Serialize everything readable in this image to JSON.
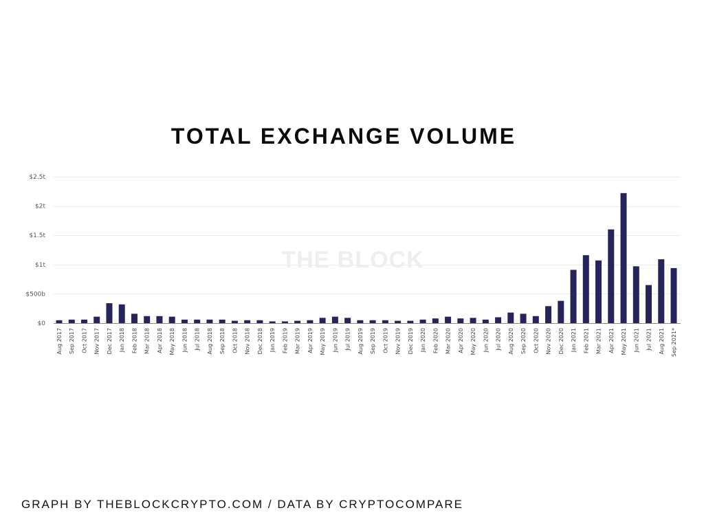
{
  "chart_data": {
    "type": "bar",
    "title": "TOTAL EXCHANGE VOLUME",
    "watermark": "THE BLOCK",
    "credit": "GRAPH BY THEBLOCKCRYPTO.COM / DATA BY CRYPTOCOMPARE",
    "bar_color": "#27245c",
    "grid": true,
    "legend": "none",
    "ylim": [
      0,
      2.5
    ],
    "y_unit": "trillion USD",
    "yticks": [
      0,
      0.5,
      1,
      1.5,
      2,
      2.5
    ],
    "ytick_labels": [
      "$0",
      "$500b",
      "$1t",
      "$1.5t",
      "$2t",
      "$2.5t"
    ],
    "categories": [
      "Aug 2017",
      "Sep 2017",
      "Oct 2017",
      "Nov 2017",
      "Dec 2017",
      "Jan 2018",
      "Feb 2018",
      "Mar 2018",
      "Apr 2018",
      "May 2018",
      "Jun 2018",
      "Jul 2018",
      "Aug 2018",
      "Sep 2018",
      "Oct 2018",
      "Nov 2018",
      "Dec 2018",
      "Jan 2019",
      "Feb 2019",
      "Mar 2019",
      "Apr 2019",
      "May 2019",
      "Jun 2019",
      "Jul 2019",
      "Aug 2019",
      "Sep 2019",
      "Oct 2019",
      "Nov 2019",
      "Dec 2019",
      "Jan 2020",
      "Feb 2020",
      "Mar 2020",
      "Apr 2020",
      "May 2020",
      "Jun 2020",
      "Jul 2020",
      "Aug 2020",
      "Sep 2020",
      "Oct 2020",
      "Nov 2020",
      "Dec 2020",
      "Jan 2021",
      "Feb 2021",
      "Mar 2021",
      "Apr 2021",
      "May 2021",
      "Jun 2021",
      "Jul 2021",
      "Aug 2021",
      "Sep 2021*"
    ],
    "values": [
      0.05,
      0.06,
      0.06,
      0.11,
      0.34,
      0.32,
      0.16,
      0.12,
      0.12,
      0.11,
      0.06,
      0.06,
      0.06,
      0.06,
      0.04,
      0.05,
      0.05,
      0.03,
      0.03,
      0.04,
      0.05,
      0.09,
      0.11,
      0.09,
      0.05,
      0.05,
      0.05,
      0.04,
      0.04,
      0.06,
      0.08,
      0.11,
      0.08,
      0.09,
      0.06,
      0.1,
      0.18,
      0.16,
      0.12,
      0.29,
      0.38,
      0.91,
      1.16,
      1.07,
      1.6,
      2.22,
      0.97,
      0.65,
      1.09,
      0.94
    ]
  }
}
